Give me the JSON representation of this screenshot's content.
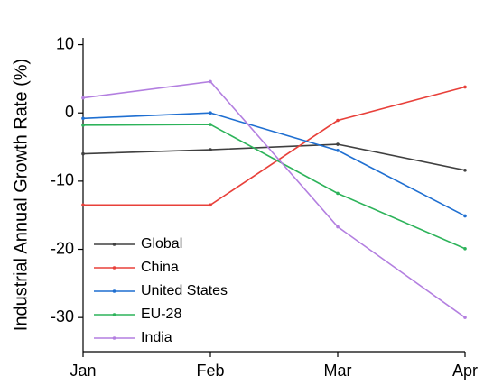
{
  "chart_data": {
    "type": "line",
    "y_label": "Industrial Annual Growth Rate (%)",
    "categories": [
      "Jan",
      "Feb",
      "Mar",
      "Apr"
    ],
    "series": [
      {
        "name": "Global",
        "color": "#404040",
        "values": [
          -6.0,
          -5.4,
          -4.6,
          -8.4
        ]
      },
      {
        "name": "China",
        "color": "#e8403a",
        "values": [
          -13.5,
          -13.5,
          -1.1,
          3.8
        ]
      },
      {
        "name": "United States",
        "color": "#1f6fd1",
        "values": [
          -0.8,
          0.0,
          -5.5,
          -15.1
        ]
      },
      {
        "name": "EU-28",
        "color": "#2db35a",
        "values": [
          -1.8,
          -1.7,
          -11.8,
          -19.9
        ]
      },
      {
        "name": "India",
        "color": "#b37fe0",
        "values": [
          2.2,
          4.6,
          -16.7,
          -30.0
        ]
      }
    ],
    "ylim": [
      -35,
      11
    ],
    "yticks": [
      10,
      0,
      -10,
      -20,
      -30
    ],
    "legend": "lower left",
    "grid": false
  }
}
